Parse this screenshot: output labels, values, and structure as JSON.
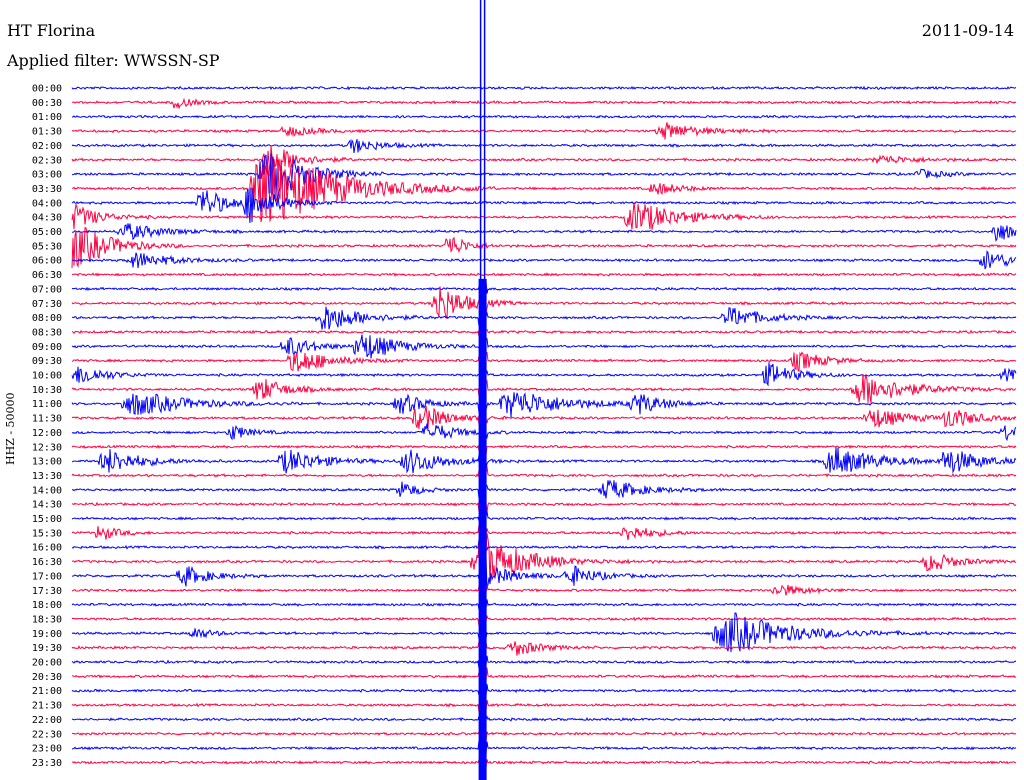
{
  "header": {
    "station": "HT Florina",
    "date": "2011-09-14",
    "filter_label": "Applied filter: WWSSN-SP"
  },
  "chart_data": {
    "type": "line",
    "title": "HT Florina",
    "subtitle": "Applied filter: WWSSN-SP",
    "ylabel": "HHZ - 50000",
    "xlabel": "",
    "row_interval_minutes": 30,
    "y_ticks": [
      "00:00",
      "00:30",
      "01:00",
      "01:30",
      "02:00",
      "02:30",
      "03:00",
      "03:30",
      "04:00",
      "04:30",
      "05:00",
      "05:30",
      "06:00",
      "06:30",
      "07:00",
      "07:30",
      "08:00",
      "08:30",
      "09:00",
      "09:30",
      "10:00",
      "10:30",
      "11:00",
      "11:30",
      "12:00",
      "12:30",
      "13:00",
      "13:30",
      "14:00",
      "14:30",
      "15:00",
      "15:30",
      "16:00",
      "16:30",
      "17:00",
      "17:30",
      "18:00",
      "18:30",
      "19:00",
      "19:30",
      "20:00",
      "20:30",
      "21:00",
      "21:30",
      "22:00",
      "22:30",
      "23:00",
      "23:30"
    ],
    "colors": {
      "even_rows": "#0000ff",
      "odd_rows": "#ff0040"
    },
    "grid": false,
    "legend": "none",
    "events": [
      {
        "row": 1,
        "t": 0.11,
        "amp": 6,
        "dur": 0.02
      },
      {
        "row": 3,
        "t": 0.23,
        "amp": 5,
        "dur": 0.03
      },
      {
        "row": 3,
        "t": 0.63,
        "amp": 8,
        "dur": 0.04
      },
      {
        "row": 4,
        "t": 0.3,
        "amp": 7,
        "dur": 0.03
      },
      {
        "row": 5,
        "t": 0.21,
        "amp": 18,
        "dur": 0.03
      },
      {
        "row": 5,
        "t": 0.86,
        "amp": 4,
        "dur": 0.04
      },
      {
        "row": 6,
        "t": 0.21,
        "amp": 30,
        "dur": 0.04
      },
      {
        "row": 6,
        "t": 0.9,
        "amp": 4,
        "dur": 0.03
      },
      {
        "row": 7,
        "t": 0.21,
        "amp": 40,
        "dur": 0.08
      },
      {
        "row": 7,
        "t": 0.62,
        "amp": 6,
        "dur": 0.03
      },
      {
        "row": 8,
        "t": 0.14,
        "amp": 15,
        "dur": 0.03
      },
      {
        "row": 8,
        "t": 0.19,
        "amp": 18,
        "dur": 0.03
      },
      {
        "row": 9,
        "t": 0.0,
        "amp": 14,
        "dur": 0.03
      },
      {
        "row": 9,
        "t": 0.6,
        "amp": 16,
        "dur": 0.05
      },
      {
        "row": 10,
        "t": 0.06,
        "amp": 8,
        "dur": 0.04
      },
      {
        "row": 10,
        "t": 0.98,
        "amp": 12,
        "dur": 0.02
      },
      {
        "row": 11,
        "t": 0.0,
        "amp": 26,
        "dur": 0.04
      },
      {
        "row": 11,
        "t": 0.4,
        "amp": 12,
        "dur": 0.02
      },
      {
        "row": 12,
        "t": 0.07,
        "amp": 8,
        "dur": 0.04
      },
      {
        "row": 12,
        "t": 0.97,
        "amp": 10,
        "dur": 0.03
      },
      {
        "row": 15,
        "t": 0.39,
        "amp": 20,
        "dur": 0.03
      },
      {
        "row": 16,
        "t": 0.27,
        "amp": 14,
        "dur": 0.04
      },
      {
        "row": 16,
        "t": 0.7,
        "amp": 10,
        "dur": 0.04
      },
      {
        "row": 18,
        "t": 0.23,
        "amp": 10,
        "dur": 0.03
      },
      {
        "row": 18,
        "t": 0.31,
        "amp": 14,
        "dur": 0.04
      },
      {
        "row": 19,
        "t": 0.24,
        "amp": 12,
        "dur": 0.04
      },
      {
        "row": 19,
        "t": 0.77,
        "amp": 10,
        "dur": 0.03
      },
      {
        "row": 20,
        "t": 0.01,
        "amp": 10,
        "dur": 0.03
      },
      {
        "row": 20,
        "t": 0.74,
        "amp": 12,
        "dur": 0.03
      },
      {
        "row": 20,
        "t": 0.99,
        "amp": 6,
        "dur": 0.02
      },
      {
        "row": 21,
        "t": 0.2,
        "amp": 12,
        "dur": 0.03
      },
      {
        "row": 21,
        "t": 0.84,
        "amp": 16,
        "dur": 0.05
      },
      {
        "row": 22,
        "t": 0.07,
        "amp": 12,
        "dur": 0.06
      },
      {
        "row": 22,
        "t": 0.35,
        "amp": 10,
        "dur": 0.03
      },
      {
        "row": 22,
        "t": 0.47,
        "amp": 14,
        "dur": 0.06
      },
      {
        "row": 22,
        "t": 0.6,
        "amp": 10,
        "dur": 0.03
      },
      {
        "row": 23,
        "t": 0.37,
        "amp": 14,
        "dur": 0.03
      },
      {
        "row": 23,
        "t": 0.85,
        "amp": 10,
        "dur": 0.04
      },
      {
        "row": 23,
        "t": 0.93,
        "amp": 10,
        "dur": 0.03
      },
      {
        "row": 24,
        "t": 0.17,
        "amp": 8,
        "dur": 0.02
      },
      {
        "row": 24,
        "t": 0.38,
        "amp": 10,
        "dur": 0.03
      },
      {
        "row": 24,
        "t": 0.99,
        "amp": 8,
        "dur": 0.02
      },
      {
        "row": 26,
        "t": 0.04,
        "amp": 12,
        "dur": 0.04
      },
      {
        "row": 26,
        "t": 0.23,
        "amp": 12,
        "dur": 0.04
      },
      {
        "row": 26,
        "t": 0.36,
        "amp": 12,
        "dur": 0.04
      },
      {
        "row": 26,
        "t": 0.81,
        "amp": 14,
        "dur": 0.05
      },
      {
        "row": 26,
        "t": 0.93,
        "amp": 12,
        "dur": 0.04
      },
      {
        "row": 28,
        "t": 0.35,
        "amp": 8,
        "dur": 0.02
      },
      {
        "row": 28,
        "t": 0.57,
        "amp": 10,
        "dur": 0.04
      },
      {
        "row": 31,
        "t": 0.03,
        "amp": 8,
        "dur": 0.02
      },
      {
        "row": 31,
        "t": 0.59,
        "amp": 8,
        "dur": 0.03
      },
      {
        "row": 33,
        "t": 0.44,
        "amp": 14,
        "dur": 0.06
      },
      {
        "row": 33,
        "t": 0.91,
        "amp": 10,
        "dur": 0.03
      },
      {
        "row": 34,
        "t": 0.12,
        "amp": 10,
        "dur": 0.03
      },
      {
        "row": 34,
        "t": 0.53,
        "amp": 10,
        "dur": 0.03
      },
      {
        "row": 35,
        "t": 0.75,
        "amp": 6,
        "dur": 0.03
      },
      {
        "row": 38,
        "t": 0.13,
        "amp": 6,
        "dur": 0.02
      },
      {
        "row": 38,
        "t": 0.7,
        "amp": 20,
        "dur": 0.07
      },
      {
        "row": 39,
        "t": 0.47,
        "amp": 8,
        "dur": 0.03
      }
    ],
    "large_event": {
      "t": 0.435,
      "start_row": 14,
      "end_row": 47,
      "peak_row": 33
    }
  }
}
